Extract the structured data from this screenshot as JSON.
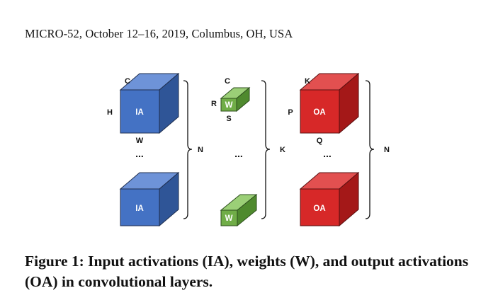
{
  "header": {
    "running_head": "MICRO-52, October 12–16, 2019, Columbus, OH, USA"
  },
  "figure": {
    "colors": {
      "ia_front": "#4472C4",
      "ia_top": "#6E93D8",
      "ia_side": "#2F5597",
      "w_front": "#70AD47",
      "w_top": "#9BCF77",
      "w_side": "#4F8A2E",
      "oa_front": "#D72828",
      "oa_top": "#E25050",
      "oa_side": "#A41818",
      "stroke": "#1F2F4F"
    },
    "ia": {
      "label": "IA",
      "dim_c": "C",
      "dim_h": "H",
      "dim_w": "W",
      "dots": "...",
      "brace": "N"
    },
    "w": {
      "label": "W",
      "dim_c": "C",
      "dim_r": "R",
      "dim_s": "S",
      "dots": "...",
      "brace": "K"
    },
    "oa": {
      "label": "OA",
      "dim_k": "K",
      "dim_p": "P",
      "dim_q": "Q",
      "dots": "...",
      "brace": "N"
    }
  },
  "caption": {
    "text": "Figure 1: Input activations (IA), weights (W), and output activations (OA) in convolutional layers."
  }
}
